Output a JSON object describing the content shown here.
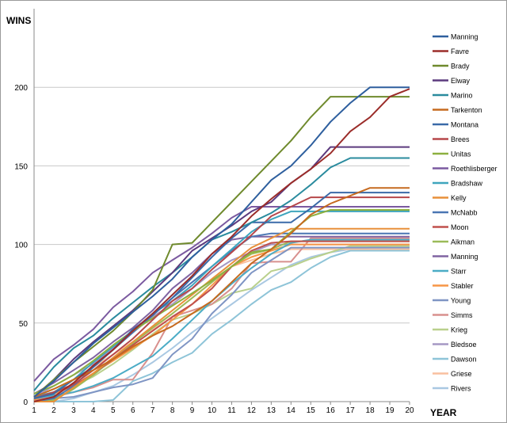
{
  "chart_data": {
    "type": "line",
    "title": "",
    "ylabel": "WINS",
    "xlabel": "YEAR",
    "x": [
      1,
      2,
      3,
      4,
      5,
      6,
      7,
      8,
      9,
      10,
      11,
      12,
      13,
      14,
      15,
      16,
      17,
      18,
      19,
      20
    ],
    "xlim": [
      1,
      20
    ],
    "ylim": [
      0,
      250
    ],
    "yticks": [
      0,
      50,
      100,
      150,
      200
    ],
    "grid": "horizontal",
    "legend_position": "right",
    "series": [
      {
        "name": "Manning",
        "color": "#2e5f9e",
        "values": [
          3,
          13,
          25,
          37,
          47,
          57,
          67,
          78,
          92,
          103,
          113,
          127,
          141,
          150,
          163,
          178,
          190,
          200,
          200,
          200
        ]
      },
      {
        "name": "Favre",
        "color": "#9b2d2a",
        "values": [
          0,
          3,
          12,
          23,
          33,
          45,
          56,
          68,
          80,
          94,
          105,
          118,
          129,
          139,
          148,
          158,
          172,
          181,
          194,
          199
        ]
      },
      {
        "name": "Brady",
        "color": "#6f8a2d",
        "values": [
          3,
          14,
          25,
          35,
          45,
          57,
          71,
          100,
          101,
          114,
          127,
          140,
          153,
          166,
          181,
          194,
          194,
          194,
          194,
          194
        ]
      },
      {
        "name": "Elway",
        "color": "#5c3a7e",
        "values": [
          3,
          14,
          27,
          38,
          48,
          58,
          70,
          82,
          96,
          104,
          112,
          121,
          127,
          139,
          148,
          162,
          162,
          162,
          162,
          162
        ]
      },
      {
        "name": "Marino",
        "color": "#2a8b9e",
        "values": [
          7,
          22,
          34,
          42,
          53,
          63,
          73,
          82,
          92,
          103,
          108,
          114,
          120,
          128,
          138,
          149,
          155,
          155,
          155,
          155
        ]
      },
      {
        "name": "Tarkenton",
        "color": "#c66a1f",
        "values": [
          3,
          8,
          14,
          20,
          27,
          35,
          42,
          48,
          56,
          64,
          76,
          88,
          97,
          107,
          119,
          126,
          131,
          136,
          136,
          136
        ]
      },
      {
        "name": "Montana",
        "color": "#3a6aa8",
        "values": [
          2,
          5,
          14,
          22,
          33,
          46,
          55,
          66,
          79,
          92,
          104,
          114,
          114,
          114,
          123,
          133,
          133,
          133,
          133,
          133
        ]
      },
      {
        "name": "Brees",
        "color": "#b6474a",
        "values": [
          2,
          6,
          11,
          20,
          30,
          40,
          52,
          64,
          72,
          84,
          95,
          106,
          118,
          124,
          130,
          130,
          130,
          130,
          130,
          130
        ]
      },
      {
        "name": "Unitas",
        "color": "#8db03f",
        "values": [
          5,
          10,
          17,
          26,
          36,
          45,
          53,
          61,
          69,
          77,
          86,
          95,
          97,
          108,
          118,
          122,
          122,
          122,
          122,
          122
        ]
      },
      {
        "name": "Roethlisberger",
        "color": "#7b5aa0",
        "values": [
          13,
          27,
          36,
          46,
          60,
          70,
          82,
          90,
          98,
          107,
          117,
          124,
          124,
          124,
          124,
          124,
          124,
          124,
          124,
          124
        ]
      },
      {
        "name": "Bradshaw",
        "color": "#3ea5bd",
        "values": [
          3,
          6,
          14,
          25,
          35,
          45,
          56,
          64,
          74,
          86,
          97,
          108,
          116,
          121,
          121,
          121,
          121,
          121,
          121,
          121
        ]
      },
      {
        "name": "Kelly",
        "color": "#e8903a",
        "values": [
          0,
          0,
          9,
          18,
          28,
          38,
          48,
          58,
          68,
          78,
          88,
          98,
          104,
          110,
          110,
          110,
          110,
          110,
          110,
          110
        ]
      },
      {
        "name": "McNabb",
        "color": "#4a76b3",
        "values": [
          0,
          2,
          10,
          22,
          33,
          44,
          55,
          66,
          76,
          86,
          96,
          105,
          107,
          107,
          107,
          107,
          107,
          107,
          107,
          107
        ]
      },
      {
        "name": "Moon",
        "color": "#c0504d",
        "values": [
          3,
          6,
          10,
          18,
          27,
          36,
          45,
          54,
          62,
          72,
          86,
          96,
          101,
          102,
          102,
          102,
          102,
          102,
          102,
          102
        ]
      },
      {
        "name": "Aikman",
        "color": "#9bbb59",
        "values": [
          0,
          1,
          8,
          17,
          27,
          37,
          47,
          56,
          66,
          76,
          86,
          94,
          97,
          102,
          102,
          102,
          102,
          102,
          102,
          102
        ]
      },
      {
        "name": "Manning",
        "color": "#8064a2",
        "values": [
          5,
          12,
          20,
          28,
          38,
          47,
          58,
          72,
          82,
          94,
          103,
          105,
          105,
          105,
          105,
          105,
          105,
          105,
          105,
          105
        ]
      },
      {
        "name": "Starr",
        "color": "#4bacc6",
        "values": [
          2,
          4,
          6,
          10,
          15,
          22,
          29,
          40,
          52,
          64,
          75,
          85,
          94,
          101,
          103,
          103,
          103,
          103,
          103,
          103
        ]
      },
      {
        "name": "Stabler",
        "color": "#f79646",
        "values": [
          1,
          5,
          10,
          18,
          26,
          34,
          42,
          52,
          62,
          74,
          86,
          92,
          96,
          100,
          100,
          100,
          100,
          100,
          100,
          100
        ]
      },
      {
        "name": "Young",
        "color": "#7f95c4",
        "values": [
          1,
          2,
          3,
          6,
          9,
          11,
          15,
          30,
          40,
          56,
          68,
          82,
          90,
          98,
          98,
          98,
          98,
          98,
          98,
          98
        ]
      },
      {
        "name": "Simms",
        "color": "#d8908e",
        "values": [
          1,
          3,
          6,
          9,
          14,
          14,
          31,
          54,
          58,
          62,
          72,
          88,
          89,
          89,
          104,
          104,
          104,
          104,
          104,
          104
        ]
      },
      {
        "name": "Krieg",
        "color": "#b9d08c",
        "values": [
          2,
          5,
          10,
          16,
          24,
          33,
          43,
          52,
          56,
          62,
          69,
          72,
          83,
          86,
          91,
          95,
          99,
          99,
          99,
          99
        ]
      },
      {
        "name": "Bledsoe",
        "color": "#a598c4",
        "values": [
          3,
          10,
          17,
          24,
          34,
          44,
          54,
          62,
          72,
          82,
          90,
          95,
          100,
          100,
          100,
          100,
          100,
          100,
          100,
          100
        ]
      },
      {
        "name": "Dawson",
        "color": "#8ec4d8",
        "values": [
          0,
          0,
          0,
          0,
          1,
          13,
          18,
          25,
          31,
          43,
          52,
          62,
          71,
          76,
          85,
          92,
          96,
          96,
          96,
          96
        ]
      },
      {
        "name": "Griese",
        "color": "#f9c09f",
        "values": [
          3,
          8,
          14,
          22,
          30,
          38,
          46,
          56,
          66,
          76,
          86,
          90,
          94,
          97,
          97,
          97,
          97,
          97,
          97,
          97
        ]
      },
      {
        "name": "Rivers",
        "color": "#a9c8e2",
        "values": [
          0,
          0,
          2,
          6,
          10,
          17,
          25,
          34,
          44,
          53,
          62,
          71,
          79,
          87,
          92,
          95,
          97,
          98,
          99,
          100
        ]
      }
    ]
  }
}
